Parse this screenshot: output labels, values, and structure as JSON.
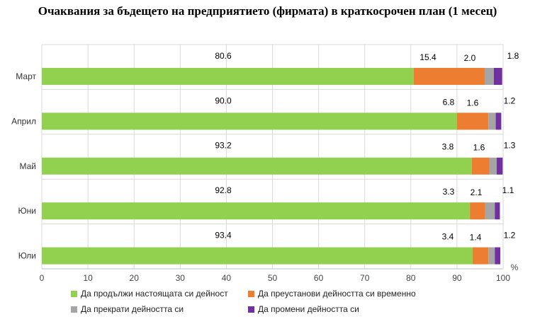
{
  "chart_data": {
    "type": "bar",
    "orientation": "horizontal",
    "stacked": true,
    "title": "Очаквания за бъдещето на предприятието (фирмата) в краткосрочен план (1 месец)",
    "categories": [
      "Март",
      "Април",
      "Май",
      "Юни",
      "Юли"
    ],
    "series": [
      {
        "name": "Да продължи настоящата си дейност",
        "color": "#92D050",
        "values": [
          80.6,
          90.0,
          93.2,
          92.8,
          93.4
        ],
        "labels": [
          "80.6",
          "90.0",
          "93.2",
          "92.8",
          "93.4"
        ]
      },
      {
        "name": "Да преустанови дейността си временно",
        "color": "#ED7D31",
        "values": [
          15.4,
          6.8,
          3.8,
          3.3,
          3.4
        ],
        "labels": [
          "15.4",
          "6.8",
          "3.8",
          "3.3",
          "3.4"
        ]
      },
      {
        "name": "Да прекрати дейността си",
        "color": "#A5A5A5",
        "values": [
          2.0,
          1.6,
          1.6,
          2.1,
          1.4
        ],
        "labels": [
          "2.0",
          "1.6",
          "1.6",
          "2.1",
          "1.4"
        ]
      },
      {
        "name": "Да промени дейността си",
        "color": "#7030A0",
        "values": [
          1.8,
          1.2,
          1.3,
          1.1,
          1.2
        ],
        "labels": [
          "1.8",
          "1.2",
          "1.3",
          "1.1",
          "1.2"
        ]
      }
    ],
    "xlim": [
      0,
      100
    ],
    "xticks": [
      "0",
      "10",
      "20",
      "30",
      "40",
      "50",
      "60",
      "70",
      "80",
      "90",
      "100"
    ],
    "x_unit": "%",
    "grid": true,
    "legend_position": "bottom"
  }
}
